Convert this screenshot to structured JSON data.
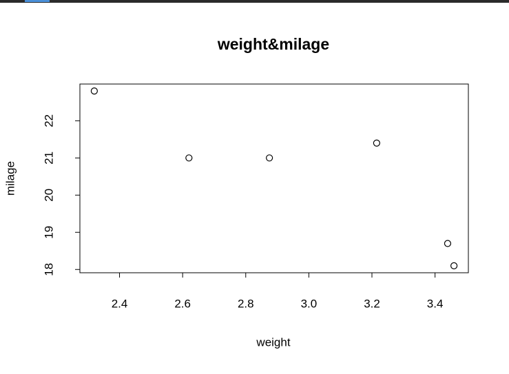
{
  "chart_data": {
    "type": "scatter",
    "title": "weight&milage",
    "x_label": "weight",
    "y_label": "milage",
    "x": [
      2.62,
      2.875,
      2.32,
      3.215,
      3.44,
      3.46
    ],
    "values": [
      21,
      21,
      22.8,
      21.4,
      18.7,
      18.1
    ],
    "color": "#000000",
    "xlim": [
      2.2744,
      3.5056
    ],
    "ylim": [
      17.912,
      22.988
    ],
    "xticks": [
      2.4,
      2.6,
      2.8,
      {
        "value": 3,
        "label": "3.0"
      },
      3.2,
      3.4
    ],
    "yticks": [
      18,
      19,
      20,
      21,
      22
    ],
    "grid": false
  }
}
